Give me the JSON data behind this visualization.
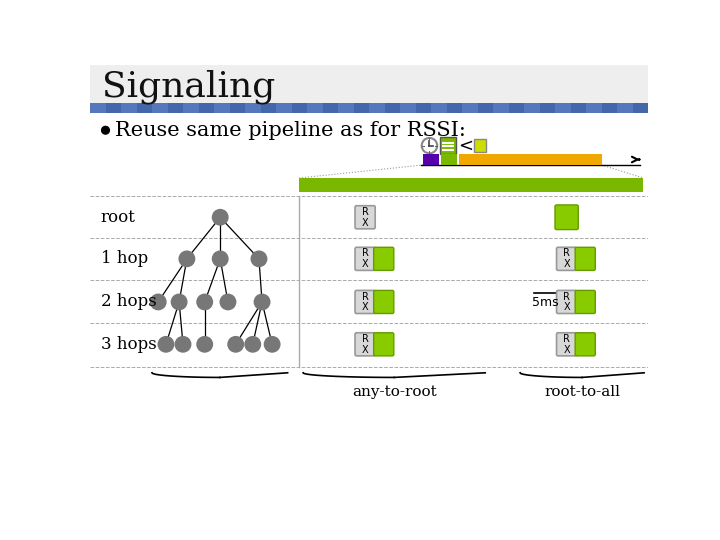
{
  "title": "Signaling",
  "bullet": "Reuse same pipeline as for RSSI:",
  "bg_color": "#ffffff",
  "title_color": "#000000",
  "row_labels": [
    "root",
    "1 hop",
    "2 hops",
    "3 hops"
  ],
  "green_bar_color": "#7ab800",
  "orange_bar_color": "#f0a800",
  "purple_block_color": "#5500aa",
  "yellow_small_color": "#ccdd00",
  "node_color": "#777777",
  "rx_box_color": "#d8d8d8",
  "rx_box_border": "#999999",
  "green_box_color": "#88cc00",
  "bottom_labels": [
    "any-to-root",
    "root-to-all"
  ],
  "ms_label": "5ms",
  "header_blue": "#4466aa",
  "header_bg": "#e8e8e8"
}
